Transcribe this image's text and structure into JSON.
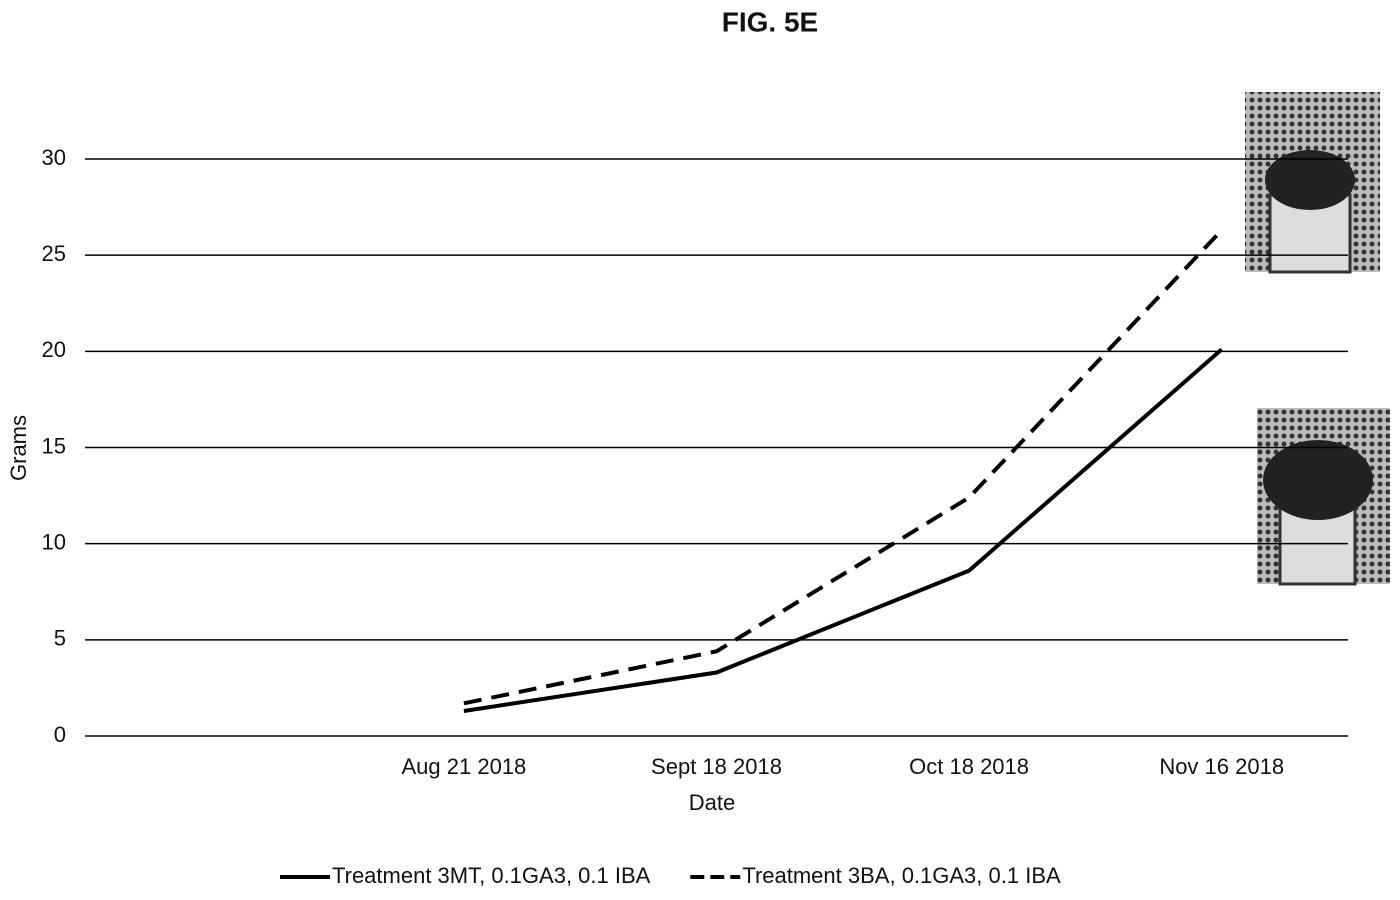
{
  "chart_data": {
    "type": "line",
    "title": "FIG. 5E",
    "xlabel": "Date",
    "ylabel": "Grams",
    "categories": [
      null,
      "Aug 21 2018",
      "Sept 18 2018",
      "Oct 18 2018",
      "Nov 16 2018"
    ],
    "series": [
      {
        "name": "Treatment 3MT, 0.1GA3, 0.1 IBA",
        "color": "#000000",
        "dash": "solid",
        "values": [
          null,
          1.3,
          3.3,
          8.6,
          20.1
        ]
      },
      {
        "name": "Treatment 3BA, 0.1GA3, 0.1 IBA",
        "color": "#000000",
        "dash": "dashed",
        "values": [
          null,
          1.7,
          4.4,
          12.4,
          26.3
        ]
      }
    ],
    "ylim": [
      0,
      30
    ],
    "yticks": [
      0,
      5,
      10,
      15,
      20,
      25,
      30
    ],
    "grid": true,
    "legend": "bottom"
  }
}
